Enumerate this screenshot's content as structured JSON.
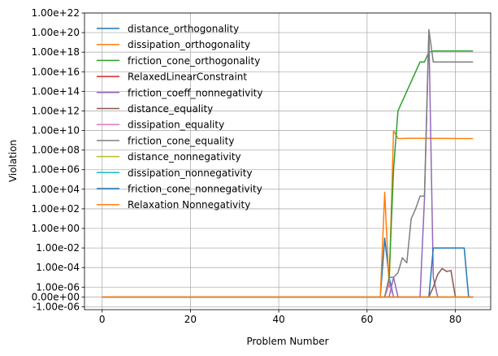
{
  "chart_data": {
    "type": "line",
    "title": "",
    "xlabel": "Problem Number",
    "ylabel": "Violation",
    "yscale": "symlog",
    "symlog_linthresh": 1e-06,
    "xlim": [
      -4,
      88
    ],
    "ylim": [
      -2e-06,
      1e+22
    ],
    "grid": true,
    "legend_position": "top-left",
    "x_ticks": [
      0,
      20,
      40,
      60,
      80
    ],
    "x_tick_labels": [
      "0",
      "20",
      "40",
      "60",
      "80"
    ],
    "y_ticks": [
      -1e-06,
      0,
      1e-06,
      0.0001,
      0.01,
      1,
      100.0,
      10000.0,
      1000000.0,
      100000000.0,
      10000000000.0,
      1000000000000.0,
      100000000000000.0,
      1e+16,
      1e+18,
      1e+20,
      1e+22
    ],
    "y_tick_labels": [
      "-1.00e-06",
      "0.00e+00",
      "1.00e-06",
      "1.00e-04",
      "1.00e-02",
      "1.00e+00",
      "1.00e+02",
      "1.00e+04",
      "1.00e+06",
      "1.00e+08",
      "1.00e+10",
      "1.00e+12",
      "1.00e+14",
      "1.00e+16",
      "1.00e+18",
      "1.00e+20",
      "1.00e+22"
    ],
    "series": [
      {
        "name": "distance_orthogonality",
        "color": "#1f77b4",
        "points": [
          [
            0,
            0
          ],
          [
            63,
            0
          ],
          [
            64,
            0.1
          ],
          [
            65,
            1e-05
          ],
          [
            66,
            0
          ],
          [
            84,
            0
          ]
        ]
      },
      {
        "name": "dissipation_orthogonality",
        "color": "#ff7f0e",
        "points": [
          [
            0,
            0
          ],
          [
            63,
            0
          ],
          [
            64,
            5000
          ],
          [
            65,
            1e-06
          ],
          [
            66,
            10000000000.0
          ],
          [
            67,
            1500000000.0
          ],
          [
            70,
            1600000000.0
          ],
          [
            84,
            1500000000.0
          ]
        ]
      },
      {
        "name": "friction_cone_orthogonality",
        "color": "#2ca02c",
        "points": [
          [
            0,
            0
          ],
          [
            64,
            0
          ],
          [
            65,
            1e-05
          ],
          [
            66,
            1000000.0
          ],
          [
            67,
            1000000000000.0
          ],
          [
            68,
            10000000000000.0
          ],
          [
            69,
            100000000000000.0
          ],
          [
            70,
            1000000000000000.0
          ],
          [
            71,
            1e+16
          ],
          [
            72,
            1e+17
          ],
          [
            73,
            1e+17
          ],
          [
            74,
            1e+18
          ],
          [
            75,
            1.3e+18
          ],
          [
            84,
            1.3e+18
          ]
        ]
      },
      {
        "name": "RelaxedLinearConstraint",
        "color": "#d62728",
        "points": [
          [
            0,
            0
          ],
          [
            84,
            0
          ]
        ]
      },
      {
        "name": "friction_coeff_nonnegativity",
        "color": "#9467bd",
        "points": [
          [
            0,
            0
          ],
          [
            65,
            0
          ],
          [
            66,
            1e-05
          ],
          [
            67,
            0
          ],
          [
            72,
            0
          ],
          [
            73,
            1000.0
          ],
          [
            74,
            1e+20
          ],
          [
            75,
            1e-05
          ],
          [
            76,
            0
          ],
          [
            84,
            0
          ]
        ]
      },
      {
        "name": "distance_equality",
        "color": "#8c564b",
        "points": [
          [
            0,
            0
          ],
          [
            74,
            0
          ],
          [
            75,
            1e-06
          ],
          [
            76,
            2e-05
          ],
          [
            77,
            8e-05
          ],
          [
            78,
            4e-05
          ],
          [
            79,
            5e-05
          ],
          [
            80,
            0
          ],
          [
            84,
            0
          ]
        ]
      },
      {
        "name": "dissipation_equality",
        "color": "#e377c2",
        "points": [
          [
            0,
            0
          ],
          [
            64,
            0
          ],
          [
            65,
            2e-06
          ],
          [
            66,
            0
          ],
          [
            84,
            0
          ]
        ]
      },
      {
        "name": "friction_cone_equality",
        "color": "#7f7f7f",
        "points": [
          [
            0,
            0
          ],
          [
            64,
            0
          ],
          [
            65,
            1e-05
          ],
          [
            66,
            1e-05
          ],
          [
            67,
            3e-05
          ],
          [
            68,
            0.001
          ],
          [
            69,
            0.0003
          ],
          [
            70,
            10.0
          ],
          [
            71,
            100.0
          ],
          [
            72,
            2000.0
          ],
          [
            73,
            2000.0
          ],
          [
            74,
            2e+20
          ],
          [
            75,
            1e+17
          ],
          [
            84,
            1e+17
          ]
        ]
      },
      {
        "name": "distance_nonnegativity",
        "color": "#bcbd22",
        "points": [
          [
            0,
            0
          ],
          [
            84,
            0
          ]
        ]
      },
      {
        "name": "dissipation_nonnegativity",
        "color": "#17becf",
        "points": [
          [
            0,
            0
          ],
          [
            84,
            0
          ]
        ]
      },
      {
        "name": "friction_cone_nonnegativity",
        "color": "#1f77b4",
        "points": [
          [
            0,
            0
          ],
          [
            74,
            0
          ],
          [
            75,
            0.01
          ],
          [
            82,
            0.01
          ],
          [
            83,
            0
          ],
          [
            84,
            0
          ]
        ]
      },
      {
        "name": "Relaxation Nonnegativity",
        "color": "#ff7f0e",
        "points": [
          [
            0,
            0
          ],
          [
            84,
            0
          ]
        ]
      }
    ]
  }
}
